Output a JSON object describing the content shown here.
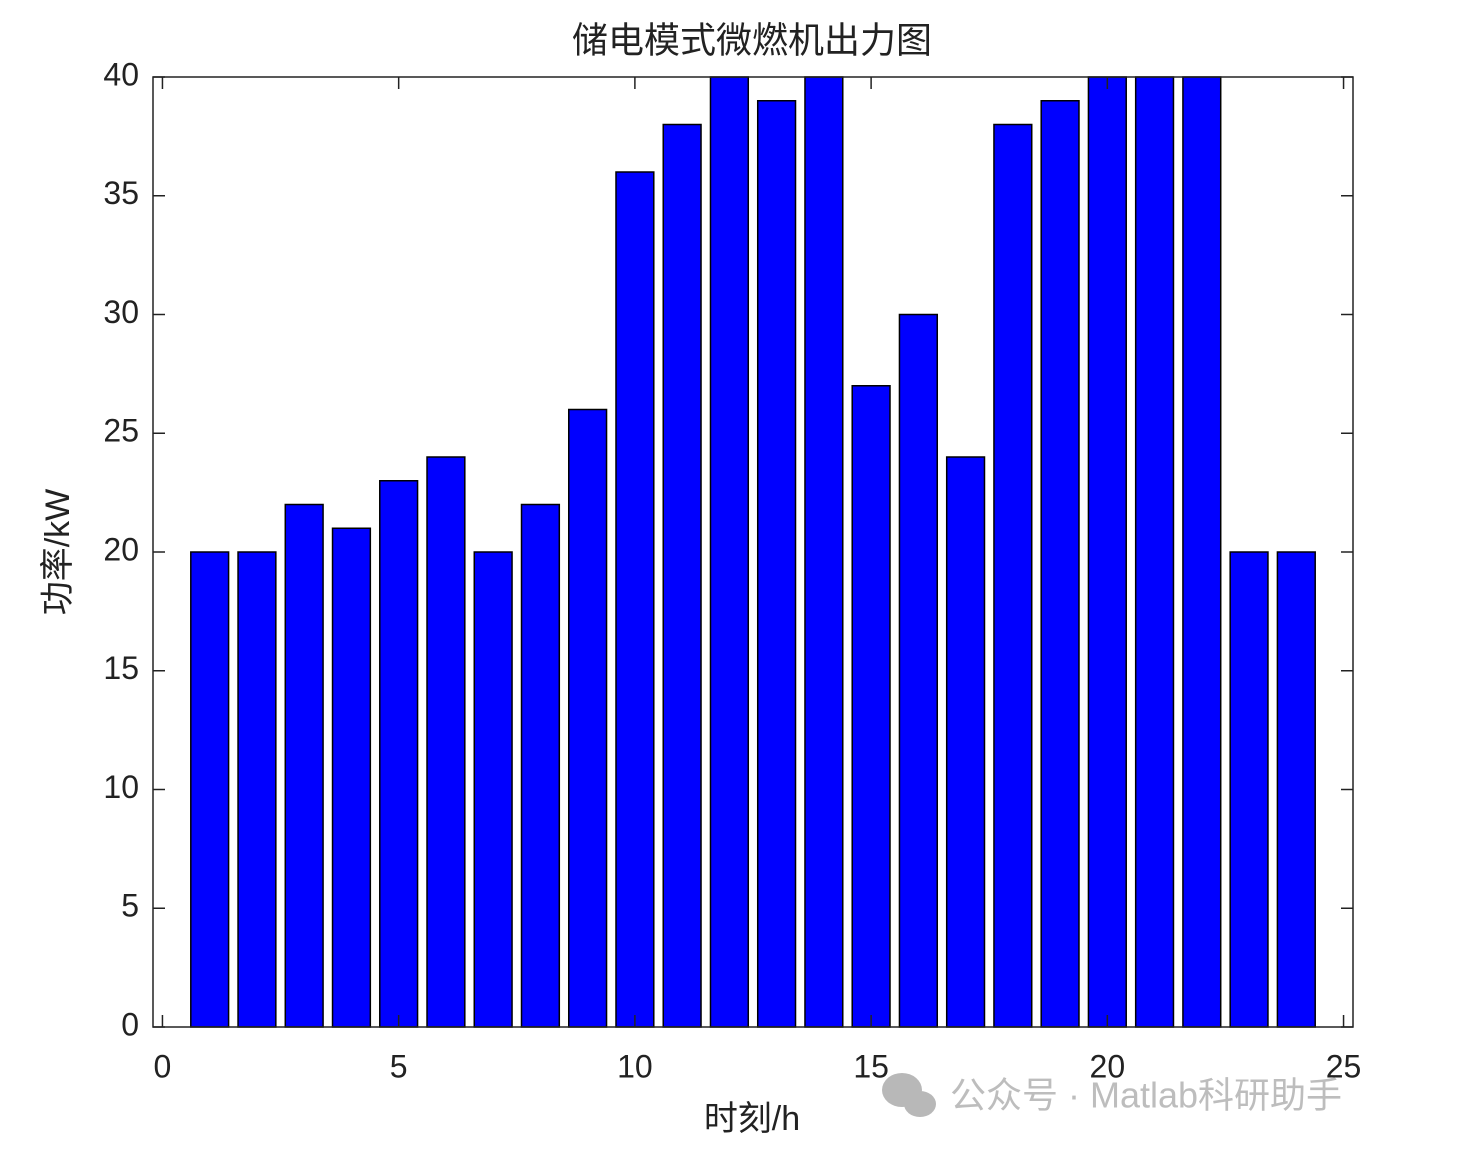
{
  "chart_data": {
    "type": "bar",
    "title": "储电模式微燃机出力图",
    "x_label": "时刻/h",
    "y_label": "功率/kW",
    "x": [
      1,
      2,
      3,
      4,
      5,
      6,
      7,
      8,
      9,
      10,
      11,
      12,
      13,
      14,
      15,
      16,
      17,
      18,
      19,
      20,
      21,
      22,
      23,
      24
    ],
    "values": [
      20,
      20,
      22,
      21,
      23,
      24,
      20,
      22,
      26,
      36,
      38,
      40,
      39,
      40,
      27,
      30,
      24,
      38,
      39,
      40,
      40,
      40,
      20,
      20
    ],
    "color": "#0000ff",
    "xlim": [
      -0.2,
      25.2
    ],
    "xticks": [
      0,
      5,
      10,
      15,
      20,
      25
    ],
    "ylim": [
      0,
      40
    ],
    "yticks": [
      0,
      5,
      10,
      15,
      20,
      25,
      30,
      35,
      40
    ],
    "grid": false
  },
  "watermark": "公众号 · Matlab科研助手"
}
